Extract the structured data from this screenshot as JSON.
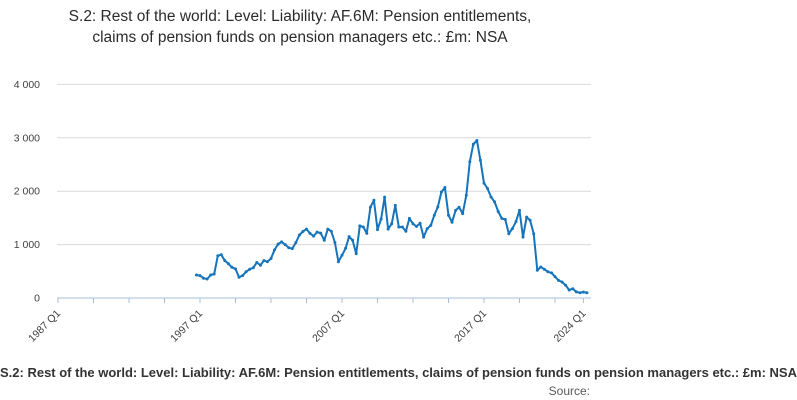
{
  "title": "S.2: Rest of the world: Level: Liability: AF.6M: Pension entitlements, claims of pension funds on pension managers etc.: £m: NSA",
  "caption": "S.2: Rest of the world: Level: Liability: AF.6M: Pension entitlements, claims of pension funds on pension managers etc.: £m: NSA",
  "source_label": "Source:",
  "colors": {
    "line": "#1574bc",
    "gridline": "#d9d9d9",
    "axis": "#a8bfd8",
    "tick_label": "#414042",
    "title_text": "#2b2b2b",
    "background": "#ffffff"
  },
  "chart_data": {
    "type": "line",
    "title": "S.2: Rest of the world: Level: Liability: AF.6M: Pension entitlements, claims of pension funds on pension managers etc.: £m: NSA",
    "unit": "£m",
    "adjustment": "NSA",
    "frequency": "quarterly",
    "xlabel": "",
    "ylabel": "",
    "ylim": [
      0,
      4000
    ],
    "y_ticks": [
      0,
      1000,
      2000,
      3000,
      4000
    ],
    "y_tick_labels": [
      "0",
      "1 000",
      "2 000",
      "3 000",
      "4 000"
    ],
    "x_axis_start": "1987 Q1",
    "x_axis_end": "2024 Q4",
    "x_labeled_ticks": [
      {
        "label": "1987 Q1",
        "q": 0
      },
      {
        "label": "1997 Q1",
        "q": 40
      },
      {
        "label": "2007 Q1",
        "q": 80
      },
      {
        "label": "2017 Q1",
        "q": 120
      },
      {
        "label": "2024 Q1",
        "q": 148
      }
    ],
    "x_minor_tick_step_quarters": 10,
    "grid": "horizontal-only",
    "legend_position": "none",
    "series_start": "1996 Q4",
    "series_end": "2024 Q2",
    "series": [
      {
        "name": "S.2 Rest of the world pension entitlements level, liability, AF.6M, £m NSA",
        "start_quarter_index_from_1987Q1": 39,
        "values": [
          430,
          420,
          370,
          355,
          430,
          450,
          790,
          810,
          700,
          640,
          575,
          545,
          390,
          420,
          490,
          540,
          565,
          665,
          615,
          700,
          680,
          740,
          900,
          1010,
          1050,
          1000,
          940,
          925,
          1040,
          1180,
          1245,
          1290,
          1210,
          1160,
          1235,
          1215,
          1080,
          1290,
          1250,
          1040,
          680,
          800,
          930,
          1150,
          1080,
          830,
          1350,
          1330,
          1210,
          1700,
          1830,
          1280,
          1480,
          1890,
          1290,
          1390,
          1735,
          1330,
          1330,
          1250,
          1490,
          1390,
          1340,
          1400,
          1140,
          1300,
          1360,
          1550,
          1705,
          1985,
          2070,
          1550,
          1420,
          1640,
          1700,
          1580,
          1925,
          2550,
          2880,
          2950,
          2580,
          2150,
          2050,
          1890,
          1800,
          1620,
          1490,
          1470,
          1205,
          1300,
          1430,
          1640,
          1140,
          1515,
          1455,
          1205,
          520,
          580,
          540,
          490,
          470,
          400,
          330,
          300,
          240,
          150,
          175,
          115,
          100,
          110,
          100
        ]
      }
    ]
  }
}
